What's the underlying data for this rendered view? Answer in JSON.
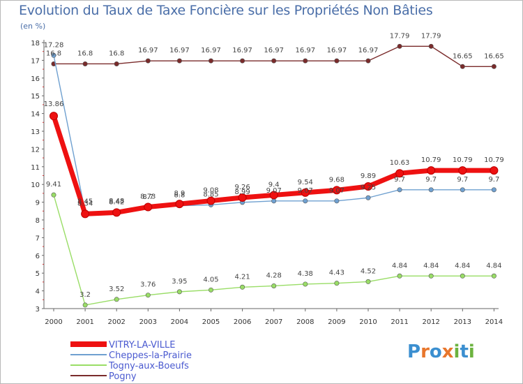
{
  "title": "Evolution du Taux de Taxe Foncière sur les Propriétés Non Bâties",
  "subtitle": "(en %)",
  "logo": {
    "text": "Proxiti",
    "letters": [
      "P",
      "r",
      "o",
      "x",
      "i",
      "t",
      "i"
    ],
    "colors": [
      "#3b8fd0",
      "#e8762c",
      "#3b8fd0",
      "#e8762c",
      "#6cb33f",
      "#3b8fd0",
      "#6cb33f"
    ]
  },
  "chart_data": {
    "type": "line",
    "title": "Evolution du Taux de Taxe Foncière sur les Propriétés Non Bâties",
    "ylabel": "(en %)",
    "xlabel": "",
    "ylim": [
      3,
      18
    ],
    "yticks": [
      "3",
      "4",
      "5",
      "6",
      "7",
      "8",
      "9",
      "10",
      "11",
      "12",
      "13",
      "14",
      "15",
      "16",
      "17",
      "18"
    ],
    "categories": [
      "2000",
      "2001",
      "2002",
      "2003",
      "2004",
      "2005",
      "2006",
      "2007",
      "2008",
      "2009",
      "2010",
      "2011",
      "2012",
      "2013",
      "2014"
    ],
    "legend_position": "bottom-left",
    "series": [
      {
        "name": "VITRY-LA-VILLE",
        "color": "#ee1111",
        "values": [
          13.86,
          8.34,
          8.42,
          8.73,
          8.9,
          9.08,
          9.26,
          9.4,
          9.54,
          9.68,
          9.89,
          10.63,
          10.79,
          10.79,
          10.79
        ],
        "labels": [
          "13.86",
          "8.34",
          "8.42",
          "8.73",
          "8.9",
          "9.08",
          "9.26",
          "9.4",
          "9.54",
          "9.68",
          "9.89",
          "10.63",
          "10.79",
          "10.79",
          "10.79"
        ]
      },
      {
        "name": "Cheppes-la-Prairie",
        "color": "#6fa0d0",
        "values": [
          17.28,
          8.45,
          8.48,
          8.7,
          8.8,
          8.85,
          8.99,
          9.07,
          9.07,
          9.07,
          9.25,
          9.7,
          9.7,
          9.7,
          9.7
        ],
        "labels": [
          "17.28",
          "8.45",
          "8.48",
          "8.7",
          "8.8",
          "8.85",
          "8.99",
          "9.07",
          "9.07",
          "9.07",
          "9.25",
          "9.7",
          "9.7",
          "9.7",
          "9.7"
        ]
      },
      {
        "name": "Togny-aux-Boeufs",
        "color": "#99dd66",
        "values": [
          9.41,
          3.2,
          3.52,
          3.76,
          3.95,
          4.05,
          4.21,
          4.28,
          4.38,
          4.43,
          4.52,
          4.84,
          4.84,
          4.84,
          4.84
        ],
        "labels": [
          "9.41",
          "3.2",
          "3.52",
          "3.76",
          "3.95",
          "4.05",
          "4.21",
          "4.28",
          "4.38",
          "4.43",
          "4.52",
          "4.84",
          "4.84",
          "4.84",
          "4.84"
        ]
      },
      {
        "name": "Pogny",
        "color": "#7a2b2b",
        "values": [
          16.8,
          16.8,
          16.8,
          16.97,
          16.97,
          16.97,
          16.97,
          16.97,
          16.97,
          16.97,
          16.97,
          17.79,
          17.79,
          16.65,
          16.65
        ],
        "labels": [
          "16.8",
          "16.8",
          "16.8",
          "16.97",
          "16.97",
          "16.97",
          "16.97",
          "16.97",
          "16.97",
          "16.97",
          "16.97",
          "17.79",
          "17.79",
          "16.65",
          "16.65"
        ]
      }
    ]
  }
}
